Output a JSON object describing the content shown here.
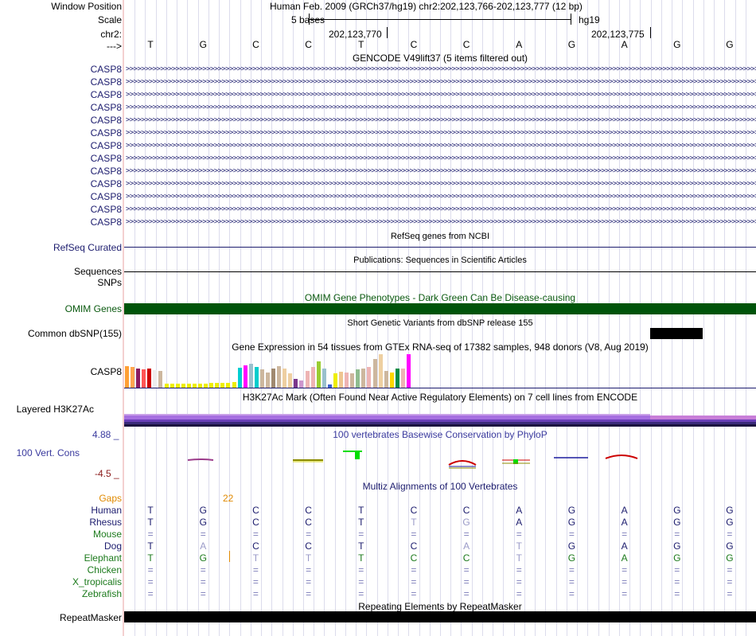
{
  "header": {
    "window_position_label": "Window Position",
    "position_text": "Human Feb. 2009 (GRCh37/hg19)   chr2:202,123,766-202,123,777 (12 bp)",
    "scale_label": "Scale",
    "scale_text": "5 bases",
    "assembly": "hg19",
    "chrom_label": "chr2:",
    "coord1": "202,123,770",
    "coord2": "202,123,775",
    "strand_label": "--->"
  },
  "bases": [
    "T",
    "G",
    "C",
    "C",
    "T",
    "C",
    "C",
    "A",
    "G",
    "A",
    "G",
    "G"
  ],
  "gencode": {
    "title": "GENCODE V49lift37 (5 items filtered out)",
    "tracks": [
      "CASP8",
      "CASP8",
      "CASP8",
      "CASP8",
      "CASP8",
      "CASP8",
      "CASP8",
      "CASP8",
      "CASP8",
      "CASP8",
      "CASP8",
      "CASP8",
      "CASP8"
    ]
  },
  "refseq": {
    "title": "RefSeq genes from NCBI",
    "label": "RefSeq Curated"
  },
  "publications": {
    "title": "Publications: Sequences in Scientific Articles",
    "label1": "Sequences",
    "label2": "SNPs"
  },
  "omim": {
    "title": "OMIM Gene Phenotypes - Dark Green Can Be Disease-causing",
    "label": "OMIM Genes",
    "color": "#00540a"
  },
  "dbsnp": {
    "title": "Short Genetic Variants from dbSNP release 155",
    "label": "Common dbSNP(155)"
  },
  "gtex": {
    "title": "Gene Expression in 54 tissues from GTEx RNA-seq of 17382 samples, 948 donors (V8, Aug 2019)",
    "label": "CASP8",
    "bars": [
      {
        "h": 27,
        "c": "#ff9f35"
      },
      {
        "h": 26,
        "c": "#ffa54f"
      },
      {
        "h": 24,
        "c": "#8b1c62"
      },
      {
        "h": 23,
        "c": "#ff5555"
      },
      {
        "h": 24,
        "c": "#cd0000"
      },
      {
        "h": 22,
        "c": "#eeeeee"
      },
      {
        "h": 21,
        "c": "#cdb79e"
      },
      {
        "h": 5,
        "c": "#eeee00"
      },
      {
        "h": 5,
        "c": "#eeee00"
      },
      {
        "h": 5,
        "c": "#eeee00"
      },
      {
        "h": 5,
        "c": "#eeee00"
      },
      {
        "h": 5,
        "c": "#eeee00"
      },
      {
        "h": 5,
        "c": "#eeee00"
      },
      {
        "h": 5,
        "c": "#eeee00"
      },
      {
        "h": 5,
        "c": "#eeee00"
      },
      {
        "h": 6,
        "c": "#eeee00"
      },
      {
        "h": 6,
        "c": "#eeee00"
      },
      {
        "h": 6,
        "c": "#eeee00"
      },
      {
        "h": 6,
        "c": "#eeee00"
      },
      {
        "h": 7,
        "c": "#eeee00"
      },
      {
        "h": 25,
        "c": "#00ced1"
      },
      {
        "h": 28,
        "c": "#ff00ff"
      },
      {
        "h": 30,
        "c": "#9ac0cd"
      },
      {
        "h": 26,
        "c": "#00cdcd"
      },
      {
        "h": 23,
        "c": "#cdb79e"
      },
      {
        "h": 19,
        "c": "#cdb79e"
      },
      {
        "h": 24,
        "c": "#a08970"
      },
      {
        "h": 27,
        "c": "#cdb79e"
      },
      {
        "h": 24,
        "c": "#eecfa1"
      },
      {
        "h": 18,
        "c": "#eecfa1"
      },
      {
        "h": 11,
        "c": "#7a378b"
      },
      {
        "h": 9,
        "c": "#cd96cd"
      },
      {
        "h": 21,
        "c": "#eeb4b4"
      },
      {
        "h": 26,
        "c": "#eeb4b4"
      },
      {
        "h": 33,
        "c": "#9acd32"
      },
      {
        "h": 24,
        "c": "#9ac0cd"
      },
      {
        "h": 4,
        "c": "#3a5fcd"
      },
      {
        "h": 18,
        "c": "#eeee00"
      },
      {
        "h": 20,
        "c": "#eec591"
      },
      {
        "h": 19,
        "c": "#eeb4b4"
      },
      {
        "h": 18,
        "c": "#cdb79e"
      },
      {
        "h": 23,
        "c": "#8fbc8f"
      },
      {
        "h": 24,
        "c": "#cdb79e"
      },
      {
        "h": 26,
        "c": "#eeb4b4"
      },
      {
        "h": 36,
        "c": "#cdb79e"
      },
      {
        "h": 42,
        "c": "#eecfa1"
      },
      {
        "h": 21,
        "c": "#cdb79e"
      },
      {
        "h": 19,
        "c": "#ffd700"
      },
      {
        "h": 24,
        "c": "#008b45"
      },
      {
        "h": 24,
        "c": "#eeb4b4"
      },
      {
        "h": 42,
        "c": "#ff00ff"
      }
    ]
  },
  "h3k27ac": {
    "title": "H3K27Ac Mark (Often Found Near Active Regulatory Elements) on 7 cell lines from ENCODE",
    "label": "Layered H3K27Ac"
  },
  "phylop": {
    "title": "100 vertebrates Basewise Conservation by PhyloP",
    "label": "100 Vert. Cons",
    "ymax": "4.88 _",
    "ymin": "-4.5 _"
  },
  "multiz": {
    "title": "Multiz Alignments of 100 Vertebrates",
    "gaps_label": "Gaps",
    "gaps_value": "22",
    "species": [
      {
        "name": "Human",
        "color": "#1c1c6e",
        "bases": [
          "T",
          "G",
          "C",
          "C",
          "T",
          "C",
          "C",
          "A",
          "G",
          "A",
          "G",
          "G"
        ]
      },
      {
        "name": "Rhesus",
        "color": "#1c1c6e",
        "bases": [
          "T",
          "G",
          "C",
          "C",
          "T",
          "T",
          "G",
          "A",
          "G",
          "A",
          "G",
          "G"
        ]
      },
      {
        "name": "Mouse",
        "color": "#1c7a1c",
        "bases": [
          "=",
          "=",
          "=",
          "=",
          "=",
          "=",
          "=",
          "=",
          "=",
          "=",
          "=",
          "="
        ]
      },
      {
        "name": "Dog",
        "color": "#1c1c6e",
        "bases": [
          "T",
          "A",
          "C",
          "C",
          "T",
          "C",
          "A",
          "T",
          "G",
          "A",
          "G",
          "G"
        ]
      },
      {
        "name": "Elephant",
        "color": "#1c7a1c",
        "bases": [
          "T",
          "G",
          "T",
          "T",
          "T",
          "C",
          "C",
          "T",
          "G",
          "A",
          "G",
          "G"
        ]
      },
      {
        "name": "Chicken",
        "color": "#1c7a1c",
        "bases": [
          "=",
          "=",
          "=",
          "=",
          "=",
          "=",
          "=",
          "=",
          "=",
          "=",
          "=",
          "="
        ]
      },
      {
        "name": "X_tropicalis",
        "color": "#1c7a1c",
        "bases": [
          "=",
          "=",
          "=",
          "=",
          "=",
          "=",
          "=",
          "=",
          "=",
          "=",
          "=",
          "="
        ]
      },
      {
        "name": "Zebrafish",
        "color": "#1c7a1c",
        "bases": [
          "=",
          "=",
          "=",
          "=",
          "=",
          "=",
          "=",
          "=",
          "=",
          "=",
          "=",
          "="
        ]
      }
    ]
  },
  "repeatmasker": {
    "title": "Repeating Elements by RepeatMasker",
    "label": "RepeatMasker"
  }
}
